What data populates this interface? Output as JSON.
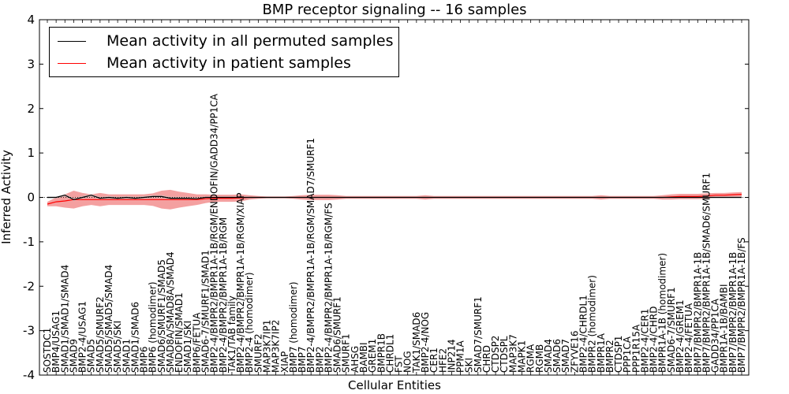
{
  "chart_data": {
    "type": "line",
    "title": "BMP receptor signaling -- 16 samples",
    "xlabel": "Cellular Entities",
    "ylabel": "Inferred Activity",
    "ylim": [
      -4,
      4
    ],
    "yticks": [
      -4,
      -3,
      -2,
      -1,
      0,
      1,
      2,
      3,
      4
    ],
    "legend_position": "top-left",
    "colors": {
      "permuted_line": "#000000",
      "patient_line": "#ff0000",
      "patient_band": "#f08080",
      "permuted_band": "#c8c8c8",
      "zero_line": "#000000"
    },
    "categories": [
      "SOSTDC1",
      "BMP4/USAG1",
      "SMAD1/SMAD1/SMAD4",
      "SMAD9",
      "BMP2-4/USAG1",
      "SMAD5",
      "SMAD5/SMURF2",
      "SMAD5/SMAD5/SMAD4",
      "SMAD5/SKI",
      "SMAD1",
      "SMAD1/SMAD6",
      "BMP6",
      "BMP6 (homodimer)",
      "SMAD6/SMURF1/SMAD5",
      "SMAD8A/SMAD8A/SMAD4",
      "ENDOFIN/SMAD1",
      "SMAD1/SKI",
      "BMP6/FETUA",
      "SMAD6-7/SMURF1/SMAD1",
      "BMP2-4/BMPR2/BMPR1A-1B/RGM/ENDOFIN/GADD34/PP1CA",
      "BMP2-4/BMPR2/BMPR1A-1B/RGM",
      "TAK1/TAB family",
      "BMP2-4/BMPR2/BMPR1A-1B/RGM/XIAP",
      "BMP2-4 (homodimer)",
      "SMURF2",
      "MAP3K7IP1",
      "MAP3K7IP2",
      "XIAP",
      "BMP7 (homodimer)",
      "BMP7",
      "BMP2-4/BMPR2/BMPR1A-1B/RGM/SMAD7/SMURF1",
      "BMP2",
      "BMP2-4/BMPR2/BMPR1A-1B/RGM/FS",
      "SMAD6/SMURF1",
      "SMURF1",
      "AHSG",
      "BAMBI",
      "GREM1",
      "BMPR1B",
      "CHRDL1",
      "FST",
      "NOG",
      "TAK1/SMAD6",
      "BMP2-4/NOG",
      "CER1",
      "HFE2",
      "INP214",
      "PPM1A",
      "SKI",
      "SMAD7/SMURF1",
      "CHRD",
      "CTDSP2",
      "CTDSPL",
      "MAP3K7",
      "MAPK1",
      "RGMA",
      "RGMB",
      "SMAD4",
      "SMAD6",
      "SMAD7",
      "ZFYVE16",
      "BMP2-4/CHRDL1",
      "BMPR2 (homodimer)",
      "BMPR1A",
      "BMPR2",
      "CTDSP1",
      "PPP1CA",
      "PPP1R15A",
      "BMP2-4/CER1",
      "BMP2-4/CHRD",
      "BMPR1A-1B (homodimer)",
      "SMAD6-7/SMURF1",
      "BMP2-4/GREM1",
      "BMP2-4/FETUA",
      "BMP7/BMPR2/BMPR1A-1B",
      "BMP7/BMPR2/BMPR1A-1B/SMAD6/SMURF1",
      "GADD34/PP1CA",
      "BMPR1A-1B/BAMBI",
      "BMP7/BMPR2/BMPR1A-1B",
      "BMP7/BMPR2/BMPR1A-1B/FS"
    ],
    "series": [
      {
        "name": "Mean activity in all permuted samples",
        "values": [
          0.0,
          0.0,
          0.05,
          -0.05,
          0.0,
          0.05,
          -0.02,
          0.0,
          -0.02,
          0.0,
          -0.02,
          0.0,
          0.02,
          0.02,
          -0.02,
          -0.02,
          -0.02,
          -0.03,
          0.0,
          0.0,
          0.0,
          0.0,
          0.0,
          0.0,
          0.0,
          0.0,
          0.0,
          0.0,
          0.0,
          0.0,
          0.0,
          0.0,
          0.0,
          0.0,
          0.0,
          0.0,
          0.0,
          0.0,
          0.0,
          0.0,
          0.0,
          0.0,
          0.0,
          0.0,
          0.0,
          0.0,
          0.0,
          0.0,
          0.0,
          0.0,
          0.0,
          0.0,
          0.0,
          0.0,
          0.0,
          0.0,
          0.0,
          0.0,
          0.0,
          0.0,
          0.0,
          0.0,
          0.0,
          0.0,
          0.0,
          0.0,
          0.0,
          0.0,
          0.0,
          0.0,
          0.0,
          0.0,
          0.0,
          0.0,
          0.0,
          0.0,
          0.0,
          0.0,
          0.0,
          0.0
        ],
        "band": [
          0.02,
          0.02,
          0.03,
          0.03,
          0.03,
          0.03,
          0.03,
          0.03,
          0.03,
          0.03,
          0.03,
          0.03,
          0.03,
          0.03,
          0.03,
          0.03,
          0.03,
          0.03,
          0.02,
          0.02,
          0.02,
          0.02,
          0.02,
          0.02,
          0.02,
          0.02,
          0.02,
          0.02,
          0.02,
          0.02,
          0.02,
          0.02,
          0.02,
          0.02,
          0.02,
          0.02,
          0.02,
          0.02,
          0.02,
          0.02,
          0.02,
          0.02,
          0.02,
          0.02,
          0.02,
          0.02,
          0.02,
          0.02,
          0.02,
          0.02,
          0.02,
          0.02,
          0.02,
          0.02,
          0.02,
          0.02,
          0.02,
          0.02,
          0.02,
          0.02,
          0.02,
          0.02,
          0.02,
          0.02,
          0.02,
          0.02,
          0.02,
          0.02,
          0.02,
          0.02,
          0.02,
          0.02,
          0.02,
          0.02,
          0.02,
          0.02,
          0.02,
          0.02,
          0.02,
          0.02
        ]
      },
      {
        "name": "Mean activity in patient samples",
        "values": [
          -0.15,
          -0.1,
          -0.08,
          -0.05,
          -0.05,
          -0.05,
          -0.05,
          -0.05,
          -0.05,
          -0.05,
          -0.05,
          -0.05,
          -0.05,
          -0.05,
          -0.05,
          -0.05,
          -0.05,
          -0.05,
          -0.03,
          -0.02,
          -0.02,
          -0.02,
          -0.01,
          0.0,
          0.0,
          0.0,
          0.0,
          0.0,
          0.0,
          0.0,
          0.0,
          0.0,
          0.0,
          0.0,
          0.0,
          0.0,
          0.0,
          0.0,
          0.0,
          0.0,
          0.0,
          0.0,
          0.0,
          0.0,
          0.0,
          0.0,
          0.0,
          0.0,
          0.0,
          0.0,
          0.0,
          0.0,
          0.0,
          0.0,
          0.0,
          0.0,
          0.0,
          0.0,
          0.0,
          0.0,
          0.0,
          0.0,
          0.0,
          0.0,
          0.0,
          0.0,
          0.0,
          0.0,
          0.0,
          0.0,
          0.0,
          0.01,
          0.02,
          0.02,
          0.02,
          0.03,
          0.05,
          0.05,
          0.06,
          0.07
        ],
        "band": [
          0.05,
          0.1,
          0.15,
          0.2,
          0.15,
          0.12,
          0.15,
          0.12,
          0.12,
          0.12,
          0.12,
          0.12,
          0.14,
          0.2,
          0.22,
          0.18,
          0.15,
          0.12,
          0.1,
          0.08,
          0.08,
          0.08,
          0.08,
          0.05,
          0.03,
          0.02,
          0.02,
          0.02,
          0.03,
          0.05,
          0.06,
          0.06,
          0.06,
          0.05,
          0.03,
          0.03,
          0.03,
          0.03,
          0.03,
          0.03,
          0.03,
          0.03,
          0.03,
          0.05,
          0.03,
          0.03,
          0.03,
          0.03,
          0.03,
          0.03,
          0.03,
          0.03,
          0.03,
          0.03,
          0.03,
          0.03,
          0.03,
          0.03,
          0.03,
          0.03,
          0.03,
          0.03,
          0.03,
          0.05,
          0.03,
          0.03,
          0.03,
          0.03,
          0.03,
          0.03,
          0.05,
          0.06,
          0.06,
          0.06,
          0.06,
          0.06,
          0.05,
          0.05,
          0.05,
          0.05
        ]
      }
    ]
  }
}
